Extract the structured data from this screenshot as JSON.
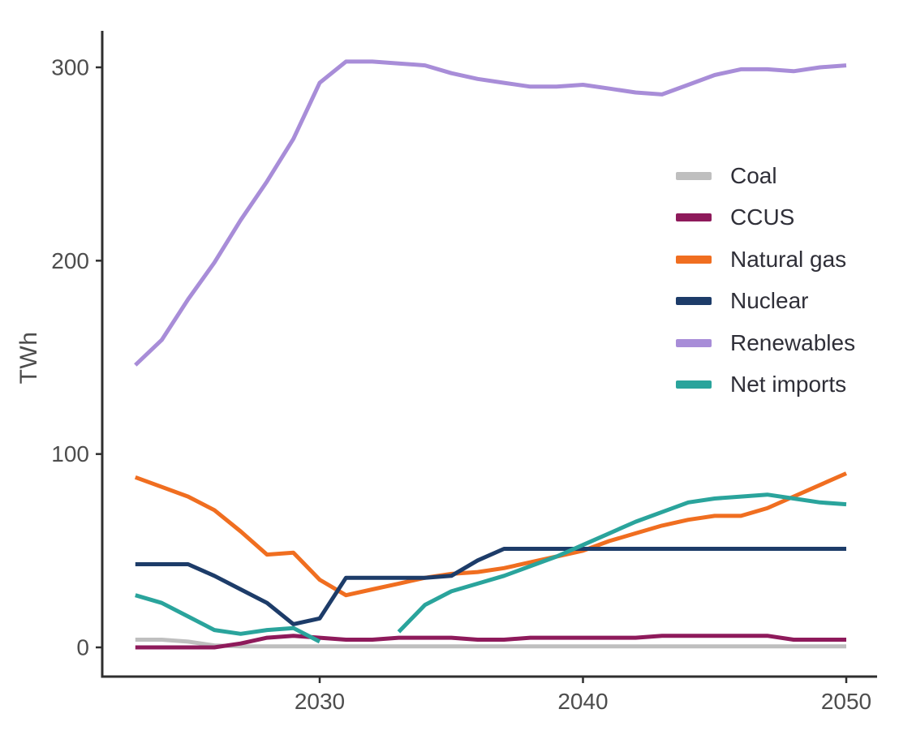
{
  "chart_data": {
    "type": "line",
    "title": "",
    "xlabel": "",
    "ylabel": "TWh",
    "unit": "TWh",
    "grid": false,
    "legend_position": "inside-right",
    "xlim": [
      2021.7,
      2051.2
    ],
    "ylim": [
      0,
      320
    ],
    "xticks": [
      2030,
      2040,
      2050
    ],
    "yticks": [
      0,
      100,
      200,
      300
    ],
    "x": [
      2023,
      2024,
      2025,
      2026,
      2027,
      2028,
      2029,
      2030,
      2031,
      2032,
      2033,
      2034,
      2035,
      2036,
      2037,
      2038,
      2039,
      2040,
      2041,
      2042,
      2043,
      2044,
      2045,
      2046,
      2047,
      2048,
      2049,
      2050
    ],
    "series": [
      {
        "name": "Coal",
        "color": "#BFBFBF",
        "values": [
          4,
          4,
          3,
          1,
          0.5,
          0.5,
          0.5,
          0.5,
          0.5,
          0.5,
          0.5,
          0.5,
          0.5,
          0.5,
          0.5,
          0.5,
          0.5,
          0.5,
          0.5,
          0.5,
          0.5,
          0.5,
          0.5,
          0.5,
          0.5,
          0.5,
          0.5,
          0.5
        ]
      },
      {
        "name": "CCUS",
        "color": "#8E1A5B",
        "values": [
          0,
          0,
          0,
          0,
          2,
          5,
          6,
          5,
          4,
          4,
          5,
          5,
          5,
          4,
          4,
          5,
          5,
          5,
          5,
          5,
          6,
          6,
          6,
          6,
          6,
          4,
          4,
          4
        ]
      },
      {
        "name": "Natural gas",
        "color": "#F06E20",
        "values": [
          88,
          83,
          78,
          71,
          60,
          48,
          49,
          35,
          27,
          30,
          33,
          36,
          38,
          39,
          41,
          44,
          47,
          50,
          55,
          59,
          63,
          66,
          68,
          68,
          72,
          78,
          84,
          90
        ]
      },
      {
        "name": "Nuclear",
        "color": "#1D3C69",
        "values": [
          43,
          43,
          43,
          37,
          30,
          23,
          12,
          15,
          36,
          36,
          36,
          36,
          37,
          45,
          51,
          51,
          51,
          51,
          51,
          51,
          51,
          51,
          51,
          51,
          51,
          51,
          51,
          51
        ]
      },
      {
        "name": "Renewables",
        "color": "#A88DD8",
        "values": [
          146,
          159,
          180,
          199,
          221,
          241,
          263,
          292,
          303,
          303,
          302,
          301,
          297,
          294,
          292,
          290,
          290,
          291,
          289,
          287,
          286,
          291,
          296,
          299,
          299,
          298,
          300,
          301
        ]
      },
      {
        "name": "Net imports",
        "color": "#2AA49C",
        "values": [
          27,
          23,
          16,
          9,
          7,
          9,
          10,
          3,
          null,
          null,
          8,
          22,
          29,
          33,
          37,
          42,
          47,
          53,
          59,
          65,
          70,
          75,
          77,
          78,
          79,
          77,
          75,
          74
        ]
      }
    ]
  }
}
